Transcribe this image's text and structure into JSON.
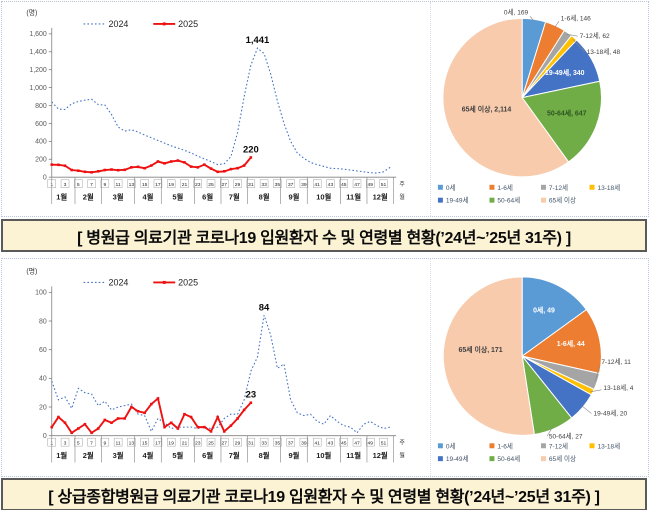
{
  "panels": [
    {
      "caption": "[ 병원급 의료기관 코로나19 입원환자 수 및 연령별 현황(’24년~’25년 31주) ]"
    },
    {
      "caption": "[ 상급종합병원급 의료기관 코로나19 입원환자 수 및 연령별 현황(’24년~’25년 31주) ]"
    }
  ],
  "chart_data": [
    {
      "id": "hospital-weekly-line",
      "type": "line",
      "y_unit": "(명)",
      "x_unit": "주",
      "x_unit_sub": "월",
      "ylim": [
        0,
        1600
      ],
      "yticks": [
        0,
        200,
        400,
        600,
        800,
        1000,
        1200,
        1400,
        1600
      ],
      "ytick_labels": [
        "0",
        "200",
        "400",
        "600",
        "800",
        "1,000",
        "1,200",
        "1,400",
        "1,600"
      ],
      "x_weeks": 52,
      "week_tick_labels": [
        "1",
        "3",
        "5",
        "7",
        "9",
        "11",
        "13",
        "15",
        "17",
        "19",
        "21",
        "23",
        "25",
        "27",
        "29",
        "31",
        "33",
        "35",
        "37",
        "39",
        "41",
        "43",
        "45",
        "47",
        "49",
        "51"
      ],
      "months": [
        "1월",
        "2월",
        "3월",
        "4월",
        "5월",
        "6월",
        "7월",
        "8월",
        "9월",
        "10월",
        "11월",
        "12월"
      ],
      "month_spans": [
        [
          1,
          4
        ],
        [
          5,
          8
        ],
        [
          9,
          13
        ],
        [
          14,
          17
        ],
        [
          18,
          22
        ],
        [
          23,
          26
        ],
        [
          27,
          30
        ],
        [
          31,
          35
        ],
        [
          36,
          39
        ],
        [
          40,
          44
        ],
        [
          45,
          48
        ],
        [
          49,
          52
        ]
      ],
      "grid": false,
      "legend_position": "top-left",
      "series": [
        {
          "name": "2024",
          "color": "#4472C4",
          "style": "dotted",
          "values": [
            840,
            760,
            755,
            820,
            845,
            860,
            870,
            810,
            805,
            700,
            560,
            515,
            530,
            505,
            470,
            440,
            410,
            380,
            350,
            325,
            300,
            270,
            235,
            205,
            175,
            140,
            150,
            230,
            500,
            900,
            1250,
            1441,
            1380,
            1150,
            850,
            600,
            400,
            270,
            210,
            165,
            140,
            120,
            100,
            95,
            90,
            80,
            70,
            60,
            50,
            45,
            60,
            110
          ]
        },
        {
          "name": "2025",
          "color": "#EE1111",
          "style": "solid",
          "marker": true,
          "values": [
            140,
            138,
            128,
            80,
            72,
            60,
            55,
            65,
            80,
            85,
            78,
            82,
            110,
            115,
            100,
            130,
            175,
            155,
            175,
            185,
            165,
            118,
            110,
            140,
            95,
            60,
            65,
            90,
            100,
            130,
            220
          ]
        }
      ],
      "annotations": [
        {
          "text": "1,441",
          "week": 32,
          "value": 1441
        },
        {
          "text": "220",
          "week": 31,
          "value": 220
        }
      ]
    },
    {
      "id": "hospital-age-pie",
      "type": "pie",
      "total": 3526,
      "slices": [
        {
          "label": "0세",
          "value": 169,
          "display": "0세, 169",
          "color": "#5B9BD5",
          "placement": "out",
          "label_xy": [
            98,
            12
          ],
          "anchor": "end",
          "leader": [
            104,
            19,
            100,
            14
          ]
        },
        {
          "label": "1-6세",
          "value": 146,
          "display": "1-6세, 146",
          "color": "#ED7D31",
          "placement": "out",
          "label_xy": [
            131,
            18
          ],
          "anchor": "start",
          "leader": [
            125,
            25,
            129,
            19
          ]
        },
        {
          "label": "7-12세",
          "value": 62,
          "display": "7-12세, 62",
          "color": "#A5A5A5",
          "placement": "out",
          "label_xy": [
            150,
            36
          ],
          "anchor": "start",
          "leader": [
            137,
            32,
            148,
            34
          ]
        },
        {
          "label": "13-18세",
          "value": 48,
          "display": "13-18세, 48",
          "color": "#FFC000",
          "placement": "out",
          "label_xy": [
            157,
            52
          ],
          "anchor": "start",
          "leader": [
            143,
            37,
            155,
            50
          ]
        },
        {
          "label": "19-49세",
          "value": 340,
          "display": "19-49세, 340",
          "color": "#4472C4",
          "placement": "in",
          "label_xy": [
            135,
            73
          ],
          "label_color": "#ffffff"
        },
        {
          "label": "50-64세",
          "value": 647,
          "display": "50-64세, 647",
          "color": "#70AD47",
          "placement": "in",
          "label_xy": [
            137,
            114
          ],
          "label_color": "#2e5420"
        },
        {
          "label": "65세 이상",
          "value": 2114,
          "display": "65세 이상, 2,114",
          "color": "#F8CBAD",
          "placement": "in",
          "label_xy": [
            56,
            110
          ],
          "label_color": "#404040"
        }
      ],
      "legend_rows": [
        [
          "0세",
          "1-6세",
          "7-12세",
          "13-18세"
        ],
        [
          "19-49세",
          "50-64세",
          "65세 이상"
        ]
      ]
    },
    {
      "id": "tertiary-weekly-line",
      "type": "line",
      "y_unit": "(명)",
      "x_unit": "주",
      "x_unit_sub": "월",
      "ylim": [
        0,
        100
      ],
      "yticks": [
        0,
        20,
        40,
        60,
        80,
        100
      ],
      "ytick_labels": [
        "0",
        "20",
        "40",
        "60",
        "80",
        "100"
      ],
      "x_weeks": 52,
      "week_tick_labels": [
        "1",
        "3",
        "5",
        "7",
        "9",
        "11",
        "13",
        "15",
        "17",
        "19",
        "21",
        "23",
        "25",
        "27",
        "29",
        "31",
        "33",
        "35",
        "37",
        "39",
        "41",
        "43",
        "45",
        "47",
        "49",
        "51"
      ],
      "months": [
        "1월",
        "2월",
        "3월",
        "4월",
        "5월",
        "6월",
        "7월",
        "8월",
        "9월",
        "10월",
        "11월",
        "12월"
      ],
      "month_spans": [
        [
          1,
          4
        ],
        [
          5,
          8
        ],
        [
          9,
          13
        ],
        [
          14,
          17
        ],
        [
          18,
          22
        ],
        [
          23,
          26
        ],
        [
          27,
          30
        ],
        [
          31,
          35
        ],
        [
          36,
          39
        ],
        [
          40,
          44
        ],
        [
          45,
          48
        ],
        [
          49,
          52
        ]
      ],
      "grid": false,
      "legend_position": "top-left",
      "series": [
        {
          "name": "2024",
          "color": "#4472C4",
          "style": "dotted",
          "values": [
            38,
            25,
            27,
            19,
            33,
            30,
            29,
            21,
            24,
            18,
            20,
            21,
            22,
            15,
            14,
            3,
            12,
            9,
            5,
            6,
            6,
            6,
            5,
            6,
            5,
            6,
            12,
            15,
            15,
            25,
            45,
            55,
            84,
            70,
            47,
            50,
            25,
            16,
            14,
            15,
            10,
            8,
            14,
            10,
            7,
            6,
            2,
            8,
            10,
            7,
            5,
            6
          ]
        },
        {
          "name": "2025",
          "color": "#EE1111",
          "style": "solid",
          "marker": true,
          "values": [
            6,
            13,
            9,
            2,
            5,
            8,
            2,
            5,
            11,
            9,
            12,
            12,
            20,
            17,
            16,
            22,
            26,
            6,
            9,
            5,
            15,
            13,
            6,
            6,
            3,
            13,
            3,
            7,
            12,
            18,
            23
          ]
        }
      ],
      "annotations": [
        {
          "text": "84",
          "week": 33,
          "value": 84
        },
        {
          "text": "23",
          "week": 31,
          "value": 23
        }
      ]
    },
    {
      "id": "tertiary-age-pie",
      "type": "pie",
      "total": 326,
      "slices": [
        {
          "label": "0세",
          "value": 49,
          "display": "0세, 49",
          "color": "#5B9BD5",
          "placement": "in",
          "label_xy": [
            114,
            52
          ],
          "label_color": "#ffffff"
        },
        {
          "label": "1-6세",
          "value": 44,
          "display": "1-6세, 44",
          "color": "#ED7D31",
          "placement": "in",
          "label_xy": [
            141,
            86
          ],
          "label_color": "#ffffff"
        },
        {
          "label": "7-12세",
          "value": 11,
          "display": "7-12세, 11",
          "color": "#A5A5A5",
          "placement": "out",
          "label_xy": [
            172,
            104
          ],
          "anchor": "start",
          "leader": [
            166,
            121,
            170,
            106
          ]
        },
        {
          "label": "13-18세",
          "value": 4,
          "display": "13-18세, 4",
          "color": "#FFC000",
          "placement": "out",
          "label_xy": [
            174,
            130
          ],
          "anchor": "start",
          "leader": [
            161,
            132,
            172,
            130
          ]
        },
        {
          "label": "19-49세",
          "value": 20,
          "display": "19-49세, 20",
          "color": "#4472C4",
          "placement": "out",
          "label_xy": [
            164,
            156
          ],
          "anchor": "start",
          "leader": [
            152,
            146,
            162,
            154
          ]
        },
        {
          "label": "50-64세",
          "value": 27,
          "display": "50-64세, 27",
          "color": "#70AD47",
          "placement": "out",
          "label_xy": [
            119,
            179
          ],
          "anchor": "start",
          "leader": [
            123,
            167,
            117,
            177
          ]
        },
        {
          "label": "65세 이상",
          "value": 171,
          "display": "65세 이상, 171",
          "color": "#F8CBAD",
          "placement": "in",
          "label_xy": [
            50,
            92
          ],
          "label_color": "#404040"
        }
      ],
      "legend_rows": [
        [
          "0세",
          "1-6세",
          "7-12세",
          "13-18세"
        ],
        [
          "19-49세",
          "50-64세",
          "65세 이상"
        ]
      ]
    }
  ]
}
